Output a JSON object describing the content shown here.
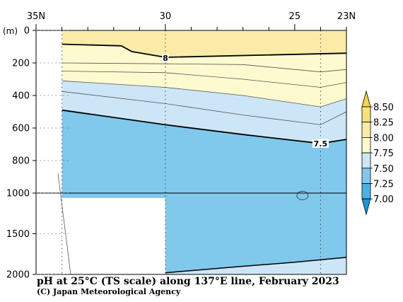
{
  "chart_data": {
    "type": "contour",
    "title": "pH at 25°C (TS scale) along 137°E line, February 2023",
    "credit": "(C) Japan Meteorological Agency",
    "y_unit_label": "(m)",
    "x_axis": {
      "label_values": [
        35,
        30,
        25,
        23
      ],
      "label_texts": [
        "35N",
        "30",
        "25",
        "23N"
      ],
      "range": [
        35,
        23
      ]
    },
    "y_axis": {
      "upper_ticks": [
        0,
        200,
        400,
        600,
        800,
        1000
      ],
      "lower_ticks": [
        1500,
        2000
      ],
      "upper_range": [
        0,
        1000
      ],
      "lower_range": [
        1000,
        2000
      ]
    },
    "colorbar": {
      "labels": [
        "8.50",
        "8.25",
        "8.00",
        "7.75",
        "7.50",
        "7.25",
        "7.00"
      ],
      "levels": [
        8.5,
        8.25,
        8.0,
        7.75,
        7.5,
        7.25,
        7.0
      ]
    },
    "colors": {
      "band_above_8_0": "#faeca8",
      "band_7_75_8_0": "#fdfacf",
      "band_7_5_7_75": "#cde6f7",
      "band_7_25_7_5": "#80c8ec",
      "no_data": "#ffffff"
    },
    "contour_labels": [
      {
        "text": "8",
        "lat": 30.0,
        "depth": 170
      },
      {
        "text": "7.5",
        "lat": 24.0,
        "depth": 695
      }
    ],
    "contours": {
      "c8_0": {
        "lat": [
          34.0,
          31.7,
          31.3,
          30.0,
          23.0
        ],
        "depth": [
          85,
          95,
          130,
          165,
          140
        ]
      },
      "c7_9": {
        "lat": [
          34.0,
          30.0,
          27.0,
          24.0,
          23.0
        ],
        "depth": [
          200,
          205,
          210,
          255,
          240
        ]
      },
      "c7_8": {
        "lat": [
          34.0,
          30.0,
          27.0,
          24.0,
          23.0
        ],
        "depth": [
          250,
          260,
          300,
          350,
          320
        ]
      },
      "c7_75": {
        "lat": [
          34.0,
          30.0,
          27.0,
          24.0,
          23.0
        ],
        "depth": [
          310,
          350,
          400,
          470,
          420
        ]
      },
      "c7_7": {
        "lat": [
          34.0,
          30.0,
          27.0,
          24.0,
          23.0
        ],
        "depth": [
          375,
          450,
          520,
          580,
          500
        ]
      },
      "c7_5": {
        "lat": [
          34.0,
          30.0,
          27.0,
          24.0,
          23.0
        ],
        "depth": [
          490,
          580,
          640,
          695,
          670
        ]
      },
      "c7_5_deep": {
        "lat": [
          30.0,
          27.0,
          25.0,
          23.0
        ],
        "depth": [
          1980,
          1900,
          1850,
          1790
        ]
      }
    },
    "small_closed_contour": {
      "lat": 24.7,
      "depth": 1030
    },
    "no_data_regions": [
      {
        "lat": [
          35.0,
          34.0
        ],
        "depth": [
          0,
          1060
        ]
      },
      {
        "lat": [
          35.0,
          30.0
        ],
        "depth": [
          1060,
          2000
        ]
      }
    ],
    "station_lats": [
      34.0,
      30.0,
      24.0
    ]
  }
}
